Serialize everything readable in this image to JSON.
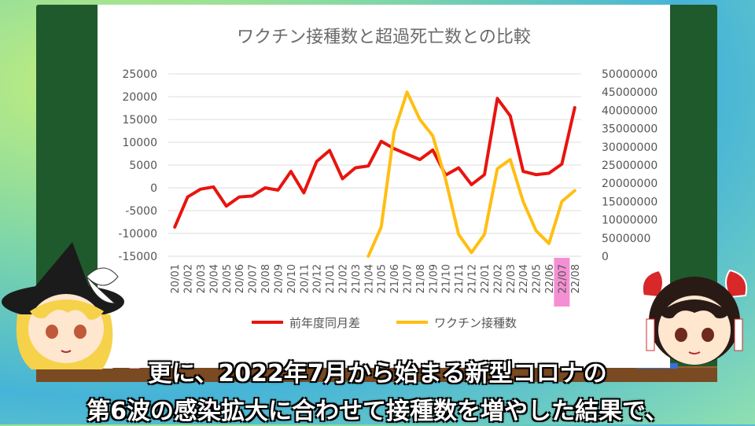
{
  "chart_data": {
    "type": "line",
    "title": "ワクチン接種数と超過死亡数との比較",
    "categories": [
      "20/01",
      "20/02",
      "20/03",
      "20/04",
      "20/05",
      "20/06",
      "20/07",
      "20/08",
      "20/09",
      "20/10",
      "20/11",
      "20/12",
      "21/01",
      "21/02",
      "21/03",
      "21/04",
      "21/05",
      "21/06",
      "21/07",
      "21/08",
      "21/09",
      "21/10",
      "21/11",
      "21/12",
      "22/01",
      "22/02",
      "22/03",
      "22/04",
      "22/05",
      "22/06",
      "22/07",
      "22/08"
    ],
    "highlight_category": "22/07",
    "highlight_color": "#f58fd3",
    "y_left": {
      "min": -15000,
      "max": 25000,
      "ticks": [
        "25000",
        "20000",
        "15000",
        "10000",
        "5000",
        "0",
        "-5000",
        "-10000",
        "-15000"
      ]
    },
    "y_right": {
      "min": 0,
      "max": 50000000,
      "ticks": [
        "50000000",
        "45000000",
        "40000000",
        "35000000",
        "30000000",
        "25000000",
        "20000000",
        "15000000",
        "10000000",
        "5000000",
        "0"
      ]
    },
    "grid": true,
    "legend_position": "bottom",
    "series": [
      {
        "name": "前年度同月差",
        "axis": "left",
        "color": "#e8140e",
        "values": [
          -8600,
          -2000,
          -300,
          200,
          -4000,
          -2000,
          -1800,
          0,
          -500,
          3600,
          -1100,
          5800,
          8200,
          2000,
          4400,
          4800,
          10200,
          8600,
          7400,
          6200,
          8300,
          2800,
          4400,
          700,
          2900,
          19600,
          15800,
          3600,
          2900,
          3200,
          5200,
          17600
        ]
      },
      {
        "name": "ワクチン接種数",
        "axis": "right",
        "color": "#ffbe12",
        "values": [
          null,
          null,
          null,
          null,
          null,
          null,
          null,
          null,
          null,
          null,
          null,
          null,
          null,
          null,
          null,
          0,
          8000000,
          34000000,
          45000000,
          37500000,
          33000000,
          21000000,
          6000000,
          1000000,
          6000000,
          24000000,
          26500000,
          15000000,
          7000000,
          3500000,
          15000000,
          18000000
        ]
      }
    ]
  },
  "subtitles": {
    "line1": "更に、2022年7月から始まる新型コロナの",
    "line2": "第6波の感染拡大に合わせて接種数を増やした結果で、"
  },
  "colors": {
    "board": "#1f5a2c",
    "ledge": "#7a4a22",
    "panel": "#ffffff"
  }
}
